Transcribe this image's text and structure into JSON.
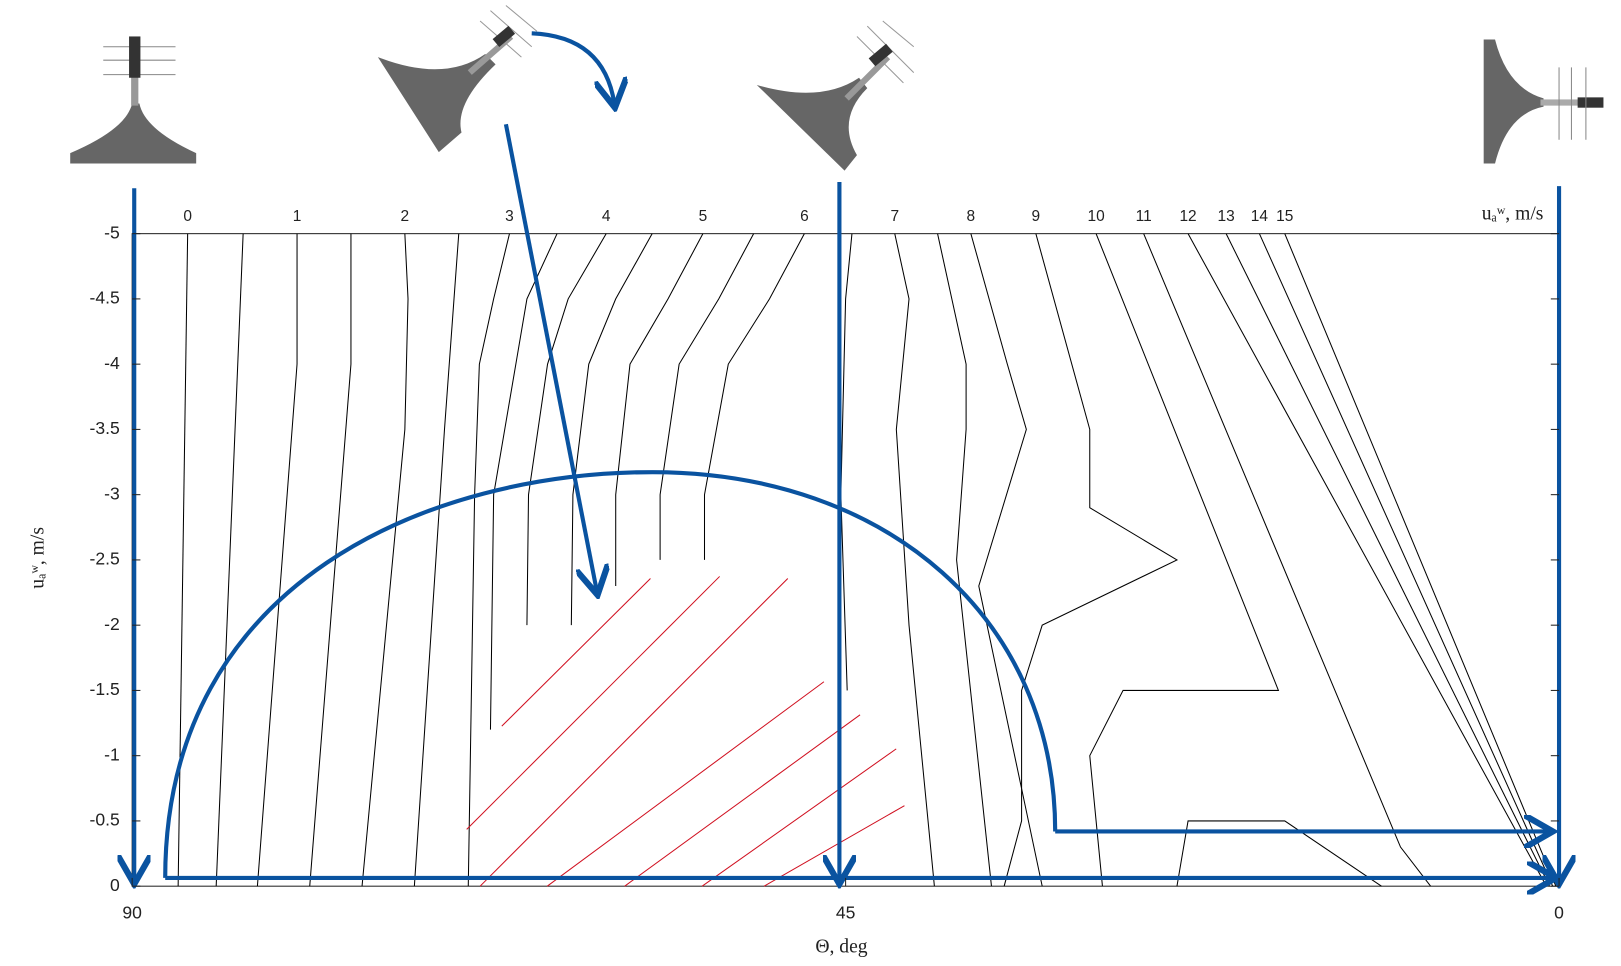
{
  "chart_data": {
    "type": "contour",
    "xlabel": "Θ, deg",
    "ylabel": "uₐʷ, m/s",
    "level_label": "uₐʷ, m/s",
    "xlim": [
      90,
      0
    ],
    "xticks": [
      90,
      45,
      0
    ],
    "ylim": [
      0,
      -5
    ],
    "yticks": [
      0,
      -0.5,
      -1,
      -1.5,
      -2,
      -2.5,
      -3,
      -3.5,
      -4,
      -4.5,
      -5
    ],
    "color": "#000000",
    "contours": [
      {
        "level": 0,
        "x": [
          86.5,
          87.1
        ],
        "y": [
          -5,
          0
        ]
      },
      {
        "level": null,
        "x": [
          83.0,
          84.7
        ],
        "y": [
          -5,
          0
        ]
      },
      {
        "level": 1,
        "x": [
          79.6,
          79.6,
          82.1
        ],
        "y": [
          -5,
          -4,
          0
        ]
      },
      {
        "level": null,
        "x": [
          76.2,
          76.2,
          78.8
        ],
        "y": [
          -5,
          -4,
          0
        ]
      },
      {
        "level": 2,
        "x": [
          72.8,
          72.6,
          72.8,
          75.5
        ],
        "y": [
          -5,
          -4.5,
          -3.5,
          0
        ]
      },
      {
        "level": null,
        "x": [
          69.4,
          69.7,
          70.3,
          72.2
        ],
        "y": [
          -5,
          -4.5,
          -3.5,
          0
        ]
      },
      {
        "level": 3,
        "x": [
          66.2,
          67.2,
          68.1,
          68.4,
          68.8
        ],
        "y": [
          -5,
          -4.5,
          -4,
          -3,
          0
        ]
      },
      {
        "level": null,
        "x": [
          63.2,
          65.1,
          65.8,
          67.2,
          67.4
        ],
        "y": [
          -5,
          -4.5,
          -4,
          -3,
          -1.2
        ]
      },
      {
        "level": 4,
        "x": [
          60.1,
          62.5,
          63.8,
          65.0,
          65.1
        ],
        "y": [
          -5,
          -4.5,
          -4,
          -3,
          -2
        ]
      },
      {
        "level": null,
        "x": [
          57.2,
          59.5,
          61.2,
          62.2,
          62.3
        ],
        "y": [
          -5,
          -4.5,
          -4,
          -3,
          -2
        ]
      },
      {
        "level": 5,
        "x": [
          54.0,
          56.2,
          58.6,
          59.5,
          59.5
        ],
        "y": [
          -5,
          -4.5,
          -4,
          -3,
          -2.3
        ]
      },
      {
        "level": null,
        "x": [
          50.8,
          53.0,
          55.5,
          56.7,
          56.7
        ],
        "y": [
          -5,
          -4.5,
          -4,
          -3,
          -2.5
        ]
      },
      {
        "level": 6,
        "x": [
          47.6,
          49.8,
          52.4,
          53.9,
          53.9
        ],
        "y": [
          -5,
          -4.5,
          -4,
          -3,
          -2.5
        ]
      },
      {
        "level": null,
        "x": [
          44.6,
          45.0,
          45.3,
          44.9
        ],
        "y": [
          -5,
          -4.5,
          -3,
          -1.5
        ]
      },
      {
        "level": 7,
        "x": [
          41.9,
          41.0,
          41.8,
          41.0,
          39.4
        ],
        "y": [
          -5,
          -4.5,
          -3.5,
          -2,
          0
        ]
      },
      {
        "level": null,
        "x": [
          39.2,
          37.4,
          37.4,
          38.0,
          35.8
        ],
        "y": [
          -5,
          -4,
          -3.5,
          -2.5,
          0
        ]
      },
      {
        "level": 8,
        "x": [
          37.1,
          34.8,
          33.6,
          36.6,
          32.6
        ],
        "y": [
          -5,
          -4,
          -3.5,
          -2.3,
          0
        ]
      },
      {
        "level": 9,
        "x": [
          33.0,
          29.6,
          29.6,
          24.1,
          32.6,
          33.9,
          33.9,
          35.0
        ],
        "y": [
          -5,
          -3.5,
          -2.9,
          -2.5,
          -2,
          -1.5,
          -0.5,
          0
        ]
      },
      {
        "level": 10,
        "x": [
          29.2,
          17.7,
          27.5,
          29.6,
          28.8
        ],
        "y": [
          -5,
          -1.5,
          -1.5,
          -1,
          0
        ]
      },
      {
        "level": 11,
        "x": [
          26.2,
          10.0,
          8.1
        ],
        "y": [
          -5,
          -0.3,
          0
        ]
      },
      {
        "level": null,
        "x": [
          24.1,
          23.4,
          17.3,
          11.2
        ],
        "y": [
          0,
          -0.5,
          -0.5,
          0
        ]
      },
      {
        "level": 12,
        "x": [
          23.4,
          0.8
        ],
        "y": [
          -5,
          0
        ]
      },
      {
        "level": 13,
        "x": [
          21.0,
          0.6
        ],
        "y": [
          -5,
          0
        ]
      },
      {
        "level": 14,
        "x": [
          18.9,
          0.4
        ],
        "y": [
          -5,
          0
        ]
      },
      {
        "level": 15,
        "x": [
          17.3,
          0.2
        ],
        "y": [
          -5,
          0
        ]
      }
    ]
  }
}
